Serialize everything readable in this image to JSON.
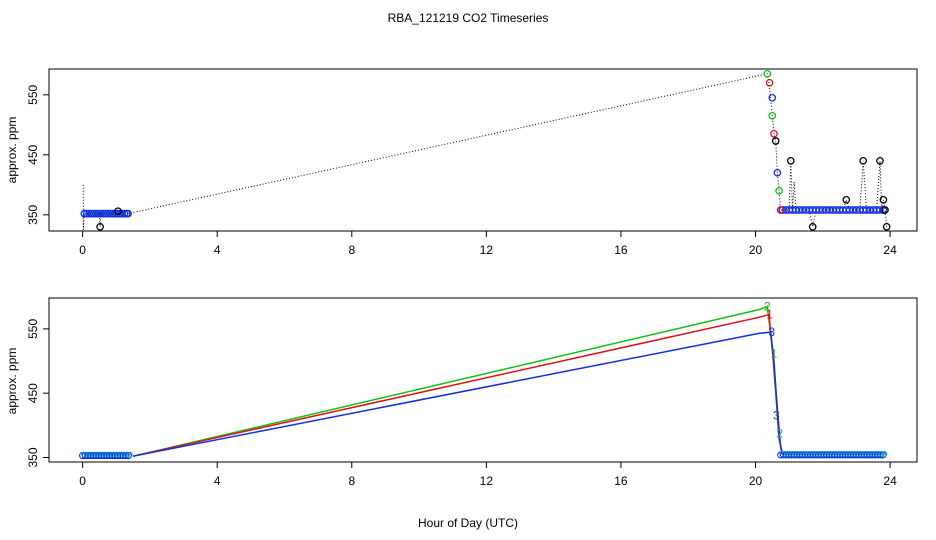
{
  "figure": {
    "title": "RBA_121219  CO2 Timeseries",
    "xlabel": "Hour of Day (UTC)"
  },
  "chart_data": [
    {
      "type": "scatter",
      "panel": "top",
      "ylabel": "approx. ppm",
      "xlim": [
        -1,
        24.8
      ],
      "ylim": [
        323,
        593
      ],
      "xticks": [
        0,
        4,
        8,
        12,
        16,
        20,
        24
      ],
      "yticks": [
        350,
        450,
        550
      ],
      "grid": false,
      "colors": {
        "black": "#000000",
        "red": "#e0101a",
        "green": "#10c010",
        "blue": "#1030e0"
      },
      "dotted_path": [
        [
          0.02,
          400
        ],
        [
          0.02,
          325
        ],
        [
          0.05,
          352
        ],
        [
          0.3,
          352
        ],
        [
          0.5,
          352
        ],
        [
          0.52,
          330
        ],
        [
          0.55,
          352
        ],
        [
          0.8,
          352
        ],
        [
          1.0,
          352
        ],
        [
          1.05,
          356
        ],
        [
          1.1,
          352
        ],
        [
          1.35,
          352
        ],
        [
          20.35,
          585
        ],
        [
          20.4,
          570
        ],
        [
          20.45,
          545
        ],
        [
          20.5,
          515
        ],
        [
          20.55,
          485
        ],
        [
          20.6,
          473
        ],
        [
          20.65,
          420
        ],
        [
          20.7,
          390
        ],
        [
          20.75,
          358
        ],
        [
          20.8,
          358
        ],
        [
          21.0,
          358
        ],
        [
          21.05,
          440
        ],
        [
          21.1,
          358
        ],
        [
          21.15,
          405
        ],
        [
          21.2,
          358
        ],
        [
          21.6,
          358
        ],
        [
          21.7,
          330
        ],
        [
          21.8,
          358
        ],
        [
          22.6,
          358
        ],
        [
          22.7,
          375
        ],
        [
          22.8,
          358
        ],
        [
          23.1,
          358
        ],
        [
          23.2,
          440
        ],
        [
          23.3,
          358
        ],
        [
          23.6,
          358
        ],
        [
          23.7,
          440
        ],
        [
          23.75,
          358
        ],
        [
          23.8,
          375
        ],
        [
          23.85,
          358
        ],
        [
          23.9,
          330
        ]
      ],
      "series": [
        {
          "color": "blue",
          "points": [
            [
              0.05,
              352
            ],
            [
              0.12,
              352
            ],
            [
              0.19,
              352
            ],
            [
              0.26,
              352
            ],
            [
              0.33,
              352
            ],
            [
              0.4,
              352
            ],
            [
              0.47,
              352
            ],
            [
              0.54,
              352
            ],
            [
              0.61,
              352
            ],
            [
              0.68,
              352
            ],
            [
              0.75,
              352
            ],
            [
              0.82,
              352
            ],
            [
              0.89,
              352
            ],
            [
              0.96,
              352
            ],
            [
              1.03,
              352
            ],
            [
              1.1,
              352
            ],
            [
              1.17,
              352
            ],
            [
              1.24,
              352
            ],
            [
              1.31,
              352
            ],
            [
              1.35,
              352
            ],
            [
              20.5,
              545
            ],
            [
              20.65,
              420
            ],
            [
              20.8,
              358
            ],
            [
              20.9,
              358
            ],
            [
              21.0,
              358
            ],
            [
              21.1,
              358
            ],
            [
              21.2,
              358
            ],
            [
              21.3,
              358
            ],
            [
              21.4,
              358
            ],
            [
              21.5,
              358
            ],
            [
              21.6,
              358
            ],
            [
              21.7,
              358
            ],
            [
              21.8,
              358
            ],
            [
              21.9,
              358
            ],
            [
              22.0,
              358
            ],
            [
              22.1,
              358
            ],
            [
              22.2,
              358
            ],
            [
              22.3,
              358
            ],
            [
              22.4,
              358
            ],
            [
              22.5,
              358
            ],
            [
              22.6,
              358
            ],
            [
              22.7,
              358
            ],
            [
              22.8,
              358
            ],
            [
              22.9,
              358
            ],
            [
              23.0,
              358
            ],
            [
              23.1,
              358
            ],
            [
              23.2,
              358
            ],
            [
              23.3,
              358
            ],
            [
              23.4,
              358
            ],
            [
              23.5,
              358
            ],
            [
              23.6,
              358
            ],
            [
              23.7,
              358
            ],
            [
              23.8,
              358
            ]
          ]
        },
        {
          "color": "black",
          "points": [
            [
              0.52,
              330
            ],
            [
              1.05,
              356
            ],
            [
              20.6,
              473
            ],
            [
              21.05,
              440
            ],
            [
              21.7,
              330
            ],
            [
              22.7,
              375
            ],
            [
              23.2,
              440
            ],
            [
              23.7,
              440
            ],
            [
              23.8,
              375
            ],
            [
              23.85,
              358
            ],
            [
              23.9,
              330
            ]
          ]
        },
        {
          "color": "green",
          "points": [
            [
              20.35,
              585
            ],
            [
              20.5,
              515
            ],
            [
              20.7,
              390
            ]
          ]
        },
        {
          "color": "red",
          "points": [
            [
              20.42,
              570
            ],
            [
              20.55,
              485
            ],
            [
              20.75,
              358
            ]
          ]
        }
      ]
    },
    {
      "type": "line",
      "panel": "bottom",
      "ylabel": "approx. ppm",
      "xlim": [
        -1,
        24.8
      ],
      "ylim": [
        343,
        598
      ],
      "xticks": [
        0,
        4,
        8,
        12,
        16,
        20,
        24
      ],
      "yticks": [
        350,
        450,
        550
      ],
      "grid": false,
      "colors": {
        "red": "#e0101a",
        "green": "#10c010",
        "blue": "#1030e0",
        "cyan": "#10b0c0",
        "navy": "#104080"
      },
      "series": [
        {
          "color": "green",
          "points": [
            [
              1.5,
              352
            ],
            [
              20.1,
              580
            ],
            [
              20.35,
              585
            ],
            [
              20.5,
              520
            ],
            [
              20.7,
              380
            ],
            [
              20.8,
              355
            ]
          ]
        },
        {
          "color": "red",
          "points": [
            [
              1.5,
              352
            ],
            [
              20.1,
              568
            ],
            [
              20.4,
              572
            ],
            [
              20.55,
              490
            ],
            [
              20.75,
              365
            ],
            [
              20.8,
              355
            ]
          ]
        },
        {
          "color": "blue",
          "points": [
            [
              1.5,
              352
            ],
            [
              20.1,
              543
            ],
            [
              20.45,
              545
            ],
            [
              20.55,
              500
            ],
            [
              20.7,
              380
            ],
            [
              20.8,
              355
            ]
          ]
        }
      ],
      "labeled_points": [
        {
          "label": "2",
          "color": "green",
          "x": 20.35,
          "y": 585
        },
        {
          "label": "1",
          "color": "red",
          "x": 20.42,
          "y": 572
        },
        {
          "label": "3",
          "color": "blue",
          "x": 20.48,
          "y": 545
        },
        {
          "label": "1",
          "color": "green",
          "x": 20.55,
          "y": 512
        },
        {
          "label": "3",
          "color": "navy",
          "x": 20.62,
          "y": 415
        },
        {
          "label": "2",
          "color": "cyan",
          "x": 20.72,
          "y": 387
        }
      ],
      "baseline_segments": [
        {
          "x_start": 0.0,
          "x_end": 1.4,
          "y": 353
        },
        {
          "x_start": 20.75,
          "x_end": 23.8,
          "y": 354
        }
      ]
    }
  ]
}
